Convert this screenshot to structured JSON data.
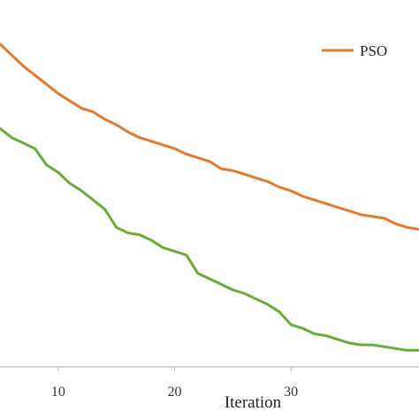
{
  "chart_data": {
    "type": "line",
    "title": "",
    "xlabel": "Iteration",
    "ylabel": "",
    "x_ticks": [
      10,
      20,
      30
    ],
    "xlim": [
      5,
      41
    ],
    "ylim": [
      0,
      100
    ],
    "grid": false,
    "legend_position": "top-right",
    "series": [
      {
        "name": "PSO",
        "color": "#e07a2e",
        "x": [
          5,
          6,
          7,
          8,
          9,
          10,
          11,
          12,
          13,
          14,
          15,
          16,
          17,
          18,
          19,
          20,
          21,
          22,
          23,
          24,
          25,
          26,
          27,
          28,
          29,
          30,
          31,
          32,
          33,
          34,
          35,
          36,
          37,
          38,
          39,
          40,
          41
        ],
        "values": [
          88,
          85,
          82,
          79.5,
          77,
          74.5,
          72.5,
          70.5,
          69.5,
          67.5,
          66,
          64,
          62.5,
          61.5,
          60.5,
          59.5,
          58,
          57,
          56,
          54,
          53.5,
          52.5,
          51.5,
          50.5,
          49,
          48,
          46.5,
          45.5,
          44.5,
          43.5,
          42.5,
          41.5,
          41,
          40.5,
          39,
          38,
          37.5
        ]
      },
      {
        "name": "",
        "color": "#6aab3a",
        "x": [
          5,
          6,
          7,
          8,
          9,
          10,
          11,
          12,
          13,
          14,
          15,
          16,
          17,
          18,
          19,
          20,
          21,
          22,
          23,
          24,
          25,
          26,
          27,
          28,
          29,
          30,
          31,
          32,
          33,
          34,
          35,
          36,
          37,
          38,
          39,
          40,
          41
        ],
        "values": [
          65,
          62.5,
          61,
          59.5,
          55,
          53,
          50,
          48,
          45.5,
          43,
          38,
          36.5,
          36,
          34.5,
          32.5,
          31.5,
          30.5,
          25.5,
          24,
          22.5,
          21,
          20,
          18.5,
          17,
          15,
          11.5,
          10.5,
          9,
          8.5,
          7.5,
          6.5,
          6,
          6,
          5.5,
          5,
          4.5,
          4.5
        ]
      }
    ]
  }
}
